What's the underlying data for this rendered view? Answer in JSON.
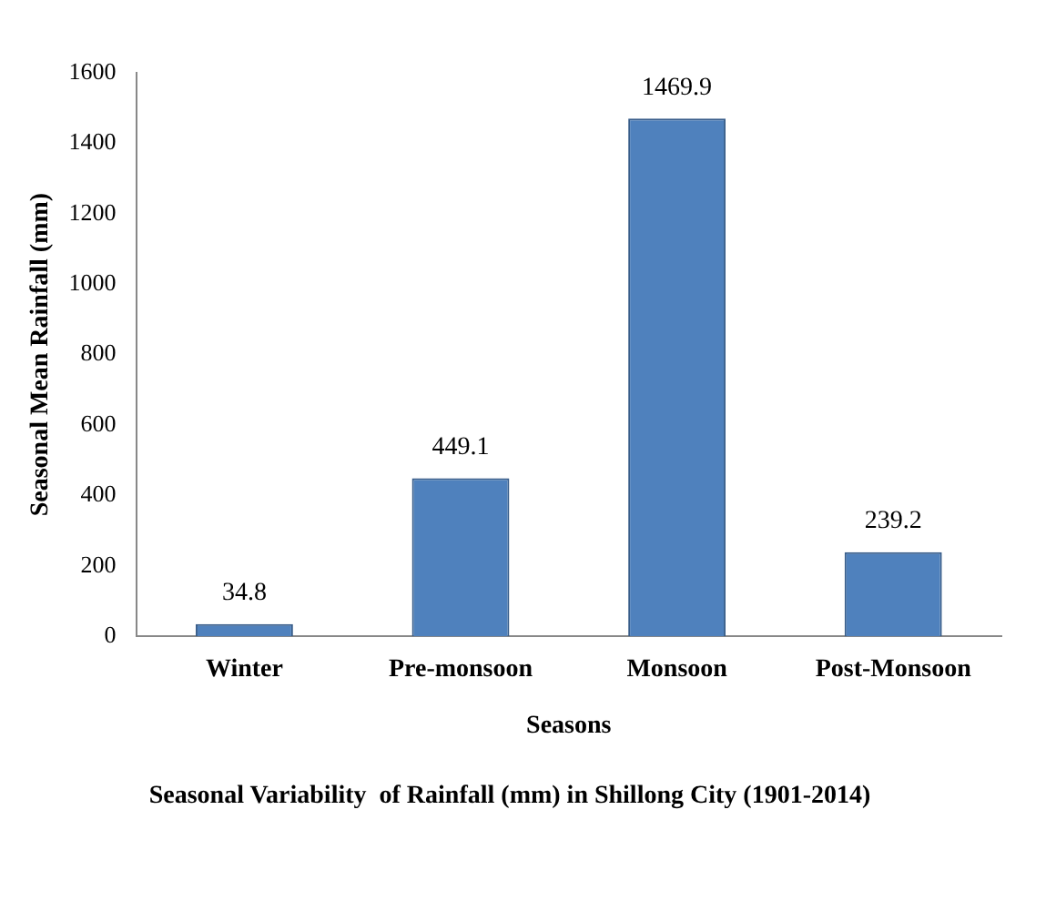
{
  "chart_data": {
    "type": "bar",
    "title": "Seasonal Variability  of Rainfall (mm) in Shillong City (1901-2014)",
    "xlabel": "Seasons",
    "ylabel": "Seasonal Mean Rainfall (mm)",
    "categories": [
      "Winter",
      "Pre-monsoon",
      "Monsoon",
      "Post-Monsoon"
    ],
    "values": [
      34.8,
      449.1,
      1469.9,
      239.2
    ],
    "color": "#4f81bd",
    "ylim": [
      0,
      1600
    ],
    "yticks": [
      0,
      200,
      400,
      600,
      800,
      1000,
      1200,
      1400,
      1600
    ],
    "grid": false,
    "data_labels": true
  }
}
